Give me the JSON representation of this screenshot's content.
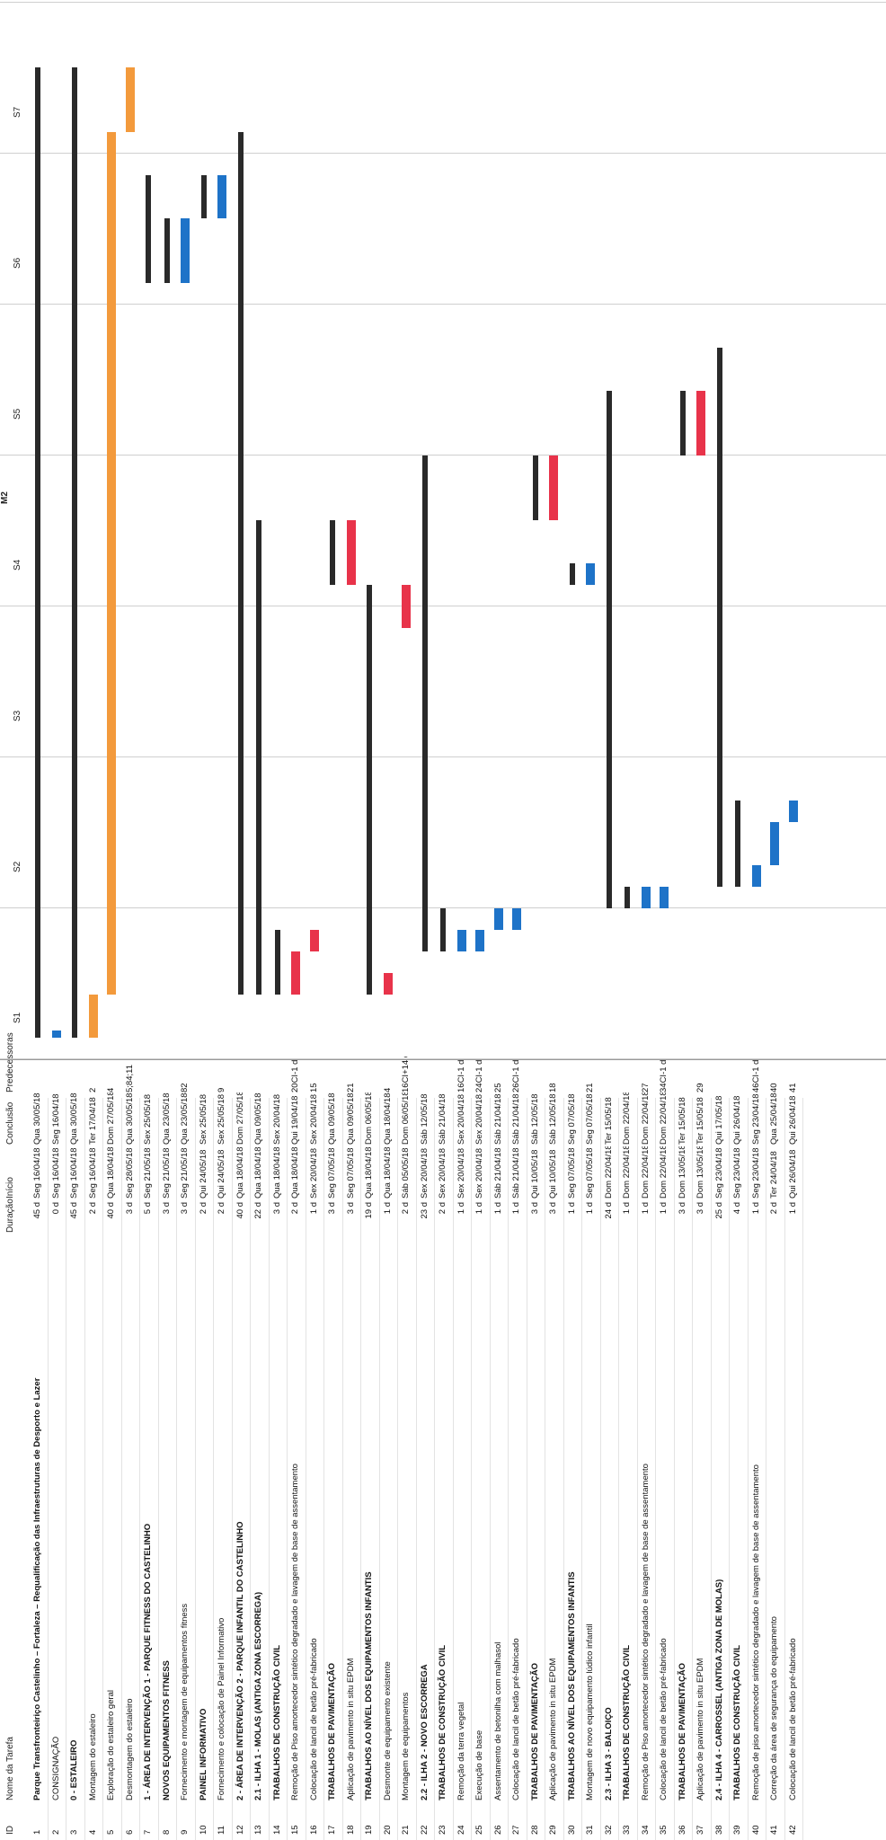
{
  "headers": {
    "id": "ID",
    "name": "Nome da Tarefa",
    "duration": "Duração",
    "start": "Início",
    "end": "Conclusão",
    "pred": "Predecessoras"
  },
  "timescale": {
    "group": "M2",
    "weeks": [
      "S1",
      "S2",
      "S3",
      "S4",
      "S5",
      "S6",
      "S7"
    ]
  },
  "colors": {
    "summary": "#2a2a2a",
    "task_red": "#e8334a",
    "task_blue": "#1e73c8",
    "task_orange": "#f39a3c",
    "critical_line": "#e8334a",
    "link_line": "#1e73c8"
  },
  "rows": [
    {
      "id": "1",
      "name": "Parque Transfronteiriço Castelinho – Fortaleza – Requalificação das Infraestruturas de Desporto e Lazer",
      "dur": "45 d",
      "ini": "Seg 16/04/18",
      "con": "Qua 30/05/18",
      "pred": "",
      "bold": true
    },
    {
      "id": "2",
      "name": "CONSIGNAÇÃO",
      "dur": "0 d",
      "ini": "Seg 16/04/18",
      "con": "Seg 16/04/18",
      "pred": "",
      "bold": false
    },
    {
      "id": "3",
      "name": "0 - ESTALEIRO",
      "dur": "45 d",
      "ini": "Seg 16/04/18",
      "con": "Qua 30/05/18",
      "pred": "",
      "bold": true
    },
    {
      "id": "4",
      "name": "Montagem do estaleiro",
      "dur": "2 d",
      "ini": "Seg 16/04/18",
      "con": "Ter 17/04/18",
      "pred": "2",
      "bold": false
    },
    {
      "id": "5",
      "name": "Exploração do estaleiro geral",
      "dur": "40 d",
      "ini": "Qua 18/04/18",
      "con": "Dom 27/05/18",
      "pred": "4",
      "bold": false
    },
    {
      "id": "6",
      "name": "Desmontagem do estaleiro",
      "dur": "3 d",
      "ini": "Seg 28/05/18",
      "con": "Qua 30/05/18",
      "pred": "5;84;11",
      "bold": false
    },
    {
      "id": "7",
      "name": "1 - ÁREA DE INTERVENÇÃO 1 - PARQUE FITNESS DO CASTELINHO",
      "dur": "5 d",
      "ini": "Seg 21/05/18",
      "con": "Sex 25/05/18",
      "pred": "",
      "bold": true
    },
    {
      "id": "8",
      "name": "NOVOS EQUIPAMENTOS FITNESS",
      "dur": "3 d",
      "ini": "Seg 21/05/18",
      "con": "Qua 23/05/18",
      "pred": "",
      "bold": true
    },
    {
      "id": "9",
      "name": "Fornecimento e montagem de equipamentos fitness",
      "dur": "3 d",
      "ini": "Seg 21/05/18",
      "con": "Qua 23/05/18",
      "pred": "82",
      "bold": false
    },
    {
      "id": "10",
      "name": "PAINEL INFORMATIVO",
      "dur": "2 d",
      "ini": "Qui 24/05/18",
      "con": "Sex 25/05/18",
      "pred": "",
      "bold": true
    },
    {
      "id": "11",
      "name": "Fornecimento e colocação de Painel Informativo",
      "dur": "2 d",
      "ini": "Qui 24/05/18",
      "con": "Sex 25/05/18",
      "pred": "9",
      "bold": false
    },
    {
      "id": "12",
      "name": "2 - ÁREA DE INTERVENÇÃO 2 - PARQUE INFANTIL DO CASTELINHO",
      "dur": "40 d",
      "ini": "Qua 18/04/18",
      "con": "Dom 27/05/18",
      "pred": "",
      "bold": true
    },
    {
      "id": "13",
      "name": "2.1 - ILHA 1 - MOLAS (ANTIGA ZONA ESCORREGA)",
      "dur": "22 d",
      "ini": "Qua 18/04/18",
      "con": "Qua 09/05/18",
      "pred": "",
      "bold": true
    },
    {
      "id": "14",
      "name": "TRABALHOS DE CONSTRUÇÃO CIVIL",
      "dur": "3 d",
      "ini": "Qua 18/04/18",
      "con": "Sex 20/04/18",
      "pred": "",
      "bold": true
    },
    {
      "id": "15",
      "name": "Remoção de Piso amortecedor sintético degradado e lavagem de base de assentamento",
      "dur": "2 d",
      "ini": "Qua 18/04/18",
      "con": "Qui 19/04/18",
      "pred": "20CI-1 d",
      "bold": false
    },
    {
      "id": "16",
      "name": "Colocação de lancil de betão pré-fabricado",
      "dur": "1 d",
      "ini": "Sex 20/04/18",
      "con": "Sex 20/04/18",
      "pred": "15",
      "bold": false
    },
    {
      "id": "17",
      "name": "TRABALHOS DE PAVIMENTAÇÃO",
      "dur": "3 d",
      "ini": "Seg 07/05/18",
      "con": "Qua 09/05/18",
      "pred": "",
      "bold": true
    },
    {
      "id": "18",
      "name": "Aplicação de pavimento in situ EPDM",
      "dur": "3 d",
      "ini": "Seg 07/05/18",
      "con": "Qua 09/05/18",
      "pred": "21",
      "bold": false
    },
    {
      "id": "19",
      "name": "TRABALHOS AO NÍVEL DOS EQUIPAMENTOS INFANTIS",
      "dur": "19 d",
      "ini": "Qua 18/04/18",
      "con": "Dom 06/05/18",
      "pred": "",
      "bold": true
    },
    {
      "id": "20",
      "name": "Desmonte de equipamento existente",
      "dur": "1 d",
      "ini": "Qua 18/04/18",
      "con": "Qua 18/04/18",
      "pred": "4",
      "bold": false
    },
    {
      "id": "21",
      "name": "Montagem de equipamentos",
      "dur": "2 d",
      "ini": "Sáb 05/05/18",
      "con": "Dom 06/05/18",
      "pred": "16CI+14 d",
      "bold": false
    },
    {
      "id": "22",
      "name": "2.2 - ILHA 2 - NOVO ESCORREGA",
      "dur": "23 d",
      "ini": "Sex 20/04/18",
      "con": "Sáb 12/05/18",
      "pred": "",
      "bold": true
    },
    {
      "id": "23",
      "name": "TRABALHOS DE CONSTRUÇÃO CIVIL",
      "dur": "2 d",
      "ini": "Sex 20/04/18",
      "con": "Sáb 21/04/18",
      "pred": "",
      "bold": true
    },
    {
      "id": "24",
      "name": "Remoção da terra vegetal",
      "dur": "1 d",
      "ini": "Sex 20/04/18",
      "con": "Sex 20/04/18",
      "pred": "16CI-1 d",
      "bold": false
    },
    {
      "id": "25",
      "name": "Execução de base",
      "dur": "1 d",
      "ini": "Sex 20/04/18",
      "con": "Sex 20/04/18",
      "pred": "24CI-1 d",
      "bold": false
    },
    {
      "id": "26",
      "name": "Assentamento de betonilha com malhasol",
      "dur": "1 d",
      "ini": "Sáb 21/04/18",
      "con": "Sáb 21/04/18",
      "pred": "25",
      "bold": false
    },
    {
      "id": "27",
      "name": "Colocação de lancil de betão pré-fabricado",
      "dur": "1 d",
      "ini": "Sáb 21/04/18",
      "con": "Sáb 21/04/18",
      "pred": "26CI-1 d",
      "bold": false
    },
    {
      "id": "28",
      "name": "TRABALHOS DE PAVIMENTAÇÃO",
      "dur": "3 d",
      "ini": "Qui 10/05/18",
      "con": "Sáb 12/05/18",
      "pred": "",
      "bold": true
    },
    {
      "id": "29",
      "name": "Aplicação de pavimento in situ EPDM",
      "dur": "3 d",
      "ini": "Qui 10/05/18",
      "con": "Sáb 12/05/18",
      "pred": "18",
      "bold": false
    },
    {
      "id": "30",
      "name": "TRABALHOS AO NÍVEL DOS EQUIPAMENTOS INFANTIS",
      "dur": "1 d",
      "ini": "Seg 07/05/18",
      "con": "Seg 07/05/18",
      "pred": "",
      "bold": true
    },
    {
      "id": "31",
      "name": "Montagem de novo equipamento lúdico infantil",
      "dur": "1 d",
      "ini": "Seg 07/05/18",
      "con": "Seg 07/05/18",
      "pred": "21",
      "bold": false
    },
    {
      "id": "32",
      "name": "2.3 - ILHA 3 - BALOIÇO",
      "dur": "24 d",
      "ini": "Dom 22/04/18",
      "con": "Ter 15/05/18",
      "pred": "",
      "bold": true
    },
    {
      "id": "33",
      "name": "TRABALHOS DE CONSTRUÇÃO CIVIL",
      "dur": "1 d",
      "ini": "Dom 22/04/18",
      "con": "Dom 22/04/18",
      "pred": "",
      "bold": true
    },
    {
      "id": "34",
      "name": "Remoção de Piso amortecedor sintético degradado e lavagem de base de assentamento",
      "dur": "1 d",
      "ini": "Dom 22/04/18",
      "con": "Dom 22/04/18",
      "pred": "27",
      "bold": false
    },
    {
      "id": "35",
      "name": "Colocação de lancil de betão pré-fabricado",
      "dur": "1 d",
      "ini": "Dom 22/04/18",
      "con": "Dom 22/04/18",
      "pred": "34CI-1 d",
      "bold": false
    },
    {
      "id": "36",
      "name": "TRABALHOS DE PAVIMENTAÇÃO",
      "dur": "3 d",
      "ini": "Dom 13/05/18",
      "con": "Ter 15/05/18",
      "pred": "",
      "bold": true
    },
    {
      "id": "37",
      "name": "Aplicação de pavimento in situ EPDM",
      "dur": "3 d",
      "ini": "Dom 13/05/18",
      "con": "Ter 15/05/18",
      "pred": "29",
      "bold": false
    },
    {
      "id": "38",
      "name": "2.4 - ILHA 4 - CARROSSEL (ANTIGA ZONA DE MOLAS)",
      "dur": "25 d",
      "ini": "Seg 23/04/18",
      "con": "Qui 17/05/18",
      "pred": "",
      "bold": true
    },
    {
      "id": "39",
      "name": "TRABALHOS DE CONSTRUÇÃO CIVIL",
      "dur": "4 d",
      "ini": "Seg 23/04/18",
      "con": "Qui 26/04/18",
      "pred": "",
      "bold": true
    },
    {
      "id": "40",
      "name": "Remoção de piso amortecedor sintético degradado e lavagem de base de assentamento",
      "dur": "1 d",
      "ini": "Seg 23/04/18",
      "con": "Seg 23/04/18",
      "pred": "46CI-1 d",
      "bold": false
    },
    {
      "id": "41",
      "name": "Correção da área de segurança do equipamento",
      "dur": "2 d",
      "ini": "Ter 24/04/18",
      "con": "Qua 25/04/18",
      "pred": "40",
      "bold": false
    },
    {
      "id": "42",
      "name": "Colocação de lancil de betão pré-fabricado",
      "dur": "1 d",
      "ini": "Qui 26/04/18",
      "con": "Qui 26/04/18",
      "pred": "41",
      "bold": false
    }
  ]
}
